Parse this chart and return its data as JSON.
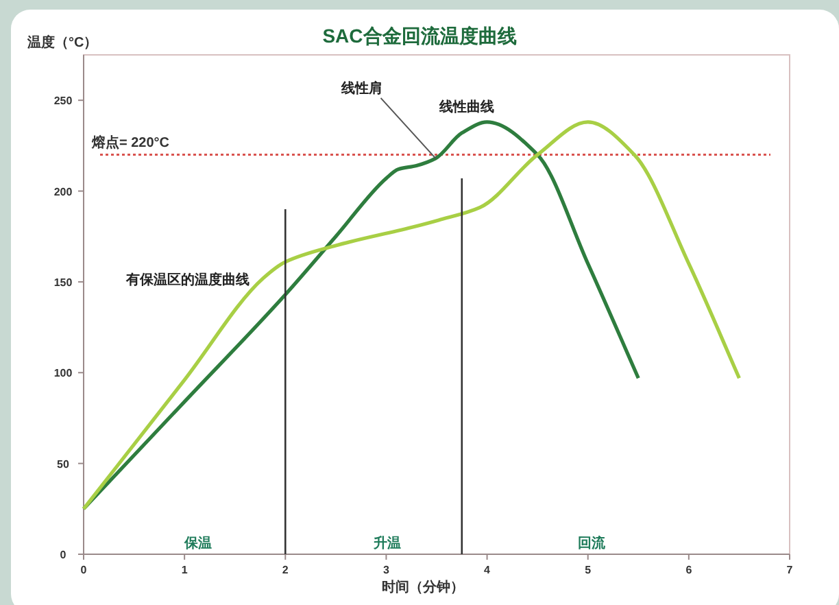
{
  "chart_data": {
    "type": "line",
    "title": "SAC合金回流温度曲线",
    "xlabel": "时间（分钟）",
    "ylabel": "温度（°C）",
    "xlim": [
      0,
      7
    ],
    "xticks": [
      0,
      1,
      2,
      3,
      4,
      5,
      6,
      7
    ],
    "ylim": [
      0,
      275
    ],
    "yticks": [
      0,
      50,
      100,
      150,
      200,
      250
    ],
    "grid": false,
    "marker": "none",
    "line_style": "solid",
    "series": [
      {
        "name": "线性曲线",
        "color": "#2e7d3e",
        "x": [
          0,
          1,
          2,
          2.5,
          3,
          3.12,
          3.3,
          3.49,
          3.75,
          4,
          4.5,
          5,
          5.5
        ],
        "values": [
          25,
          84,
          143,
          175,
          207,
          212,
          214,
          218,
          232,
          238,
          220,
          160,
          97
        ]
      },
      {
        "name": "有保温区的温度曲线",
        "color": "#a8cf45",
        "x": [
          0,
          1,
          1.78,
          2,
          2.5,
          3.25,
          3.52,
          3.93,
          4.5,
          5,
          5.46,
          6,
          6.5
        ],
        "values": [
          25,
          96,
          152,
          161,
          170,
          180,
          184,
          191,
          220,
          238,
          220,
          160,
          97
        ]
      },
      {
        "color": "#333333",
        "x": [
          2,
          2
        ],
        "values": [
          0,
          190
        ]
      },
      {
        "color": "#333333",
        "x": [
          3.75,
          3.75
        ],
        "values": [
          0,
          207
        ]
      }
    ],
    "ref_lines": [
      {
        "axis": "y",
        "value": 220,
        "label": "熔点= 220°C",
        "color": "#d9534f",
        "line_style": "dotted"
      }
    ],
    "annotations": [
      {
        "text": "线性肩",
        "x": 3.49,
        "y": 218
      },
      "保温",
      "升温",
      "回流"
    ]
  }
}
